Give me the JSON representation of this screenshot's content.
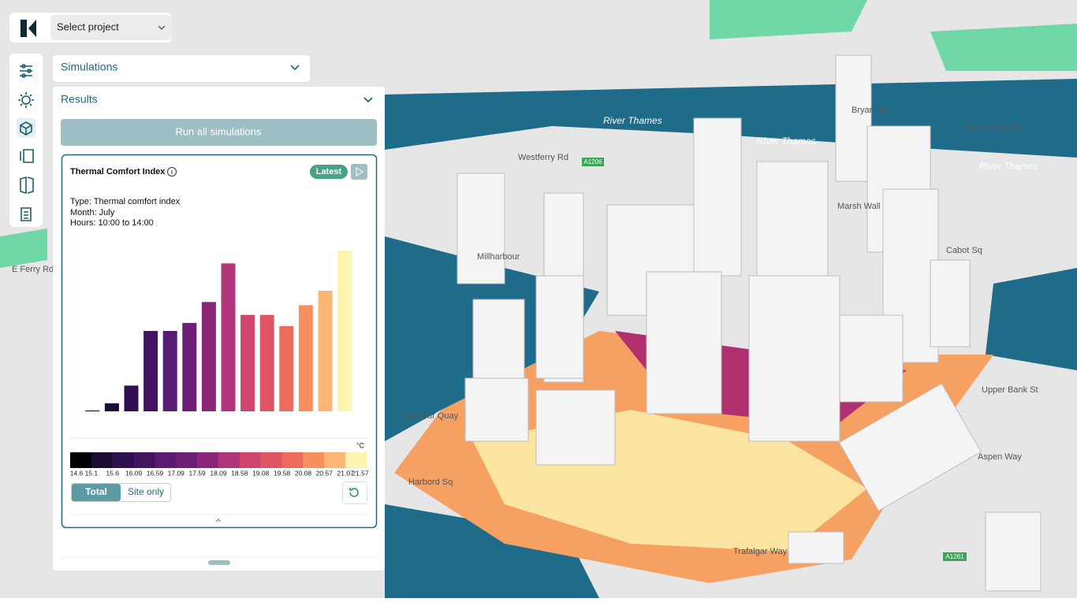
{
  "header": {
    "project_select": "Select project"
  },
  "panel": {
    "sections": [
      "Simulations",
      "Results"
    ],
    "run_button": "Run all simulations",
    "card": {
      "title": "Thermal Comfort Index",
      "badge": "Latest",
      "details": [
        "Type: Thermal comfort index",
        "Month: July",
        "Hours: 10:00 to 14:00"
      ],
      "toggle": [
        "Total",
        "Site only"
      ]
    }
  },
  "chart_data": {
    "type": "histogram",
    "unit": "°C",
    "bins": [
      14.6,
      15.1,
      15.6,
      16.09,
      16.59,
      17.09,
      17.59,
      18.09,
      18.58,
      19.08,
      19.58,
      20.08,
      20.57,
      21.07,
      21.57
    ],
    "values": [
      0.5,
      5,
      16,
      50,
      50,
      55,
      68,
      92,
      60,
      60,
      53,
      66,
      75,
      100
    ],
    "colors": [
      "#000004",
      "#1b0c35",
      "#2e1050",
      "#42135f",
      "#581a72",
      "#6d1f76",
      "#8b2679",
      "#b2347a",
      "#ce456e",
      "#e05563",
      "#ec6b5c",
      "#f78f5e",
      "#fbb574",
      "#fcf3ae"
    ]
  },
  "map_labels": [
    "River Thames",
    "River Thames",
    "River Thames",
    "Westferry Rd",
    "Harbord Sq",
    "Trafalgar Way",
    "Aspen Way",
    "Upper Bank St",
    "Marsh Wall",
    "Cabot Sq",
    "E Ferry Rd",
    "Millharbour",
    "Harbour Quay",
    "Bryan Rd",
    "Rotherhithe St",
    "A1206",
    "A1261"
  ]
}
